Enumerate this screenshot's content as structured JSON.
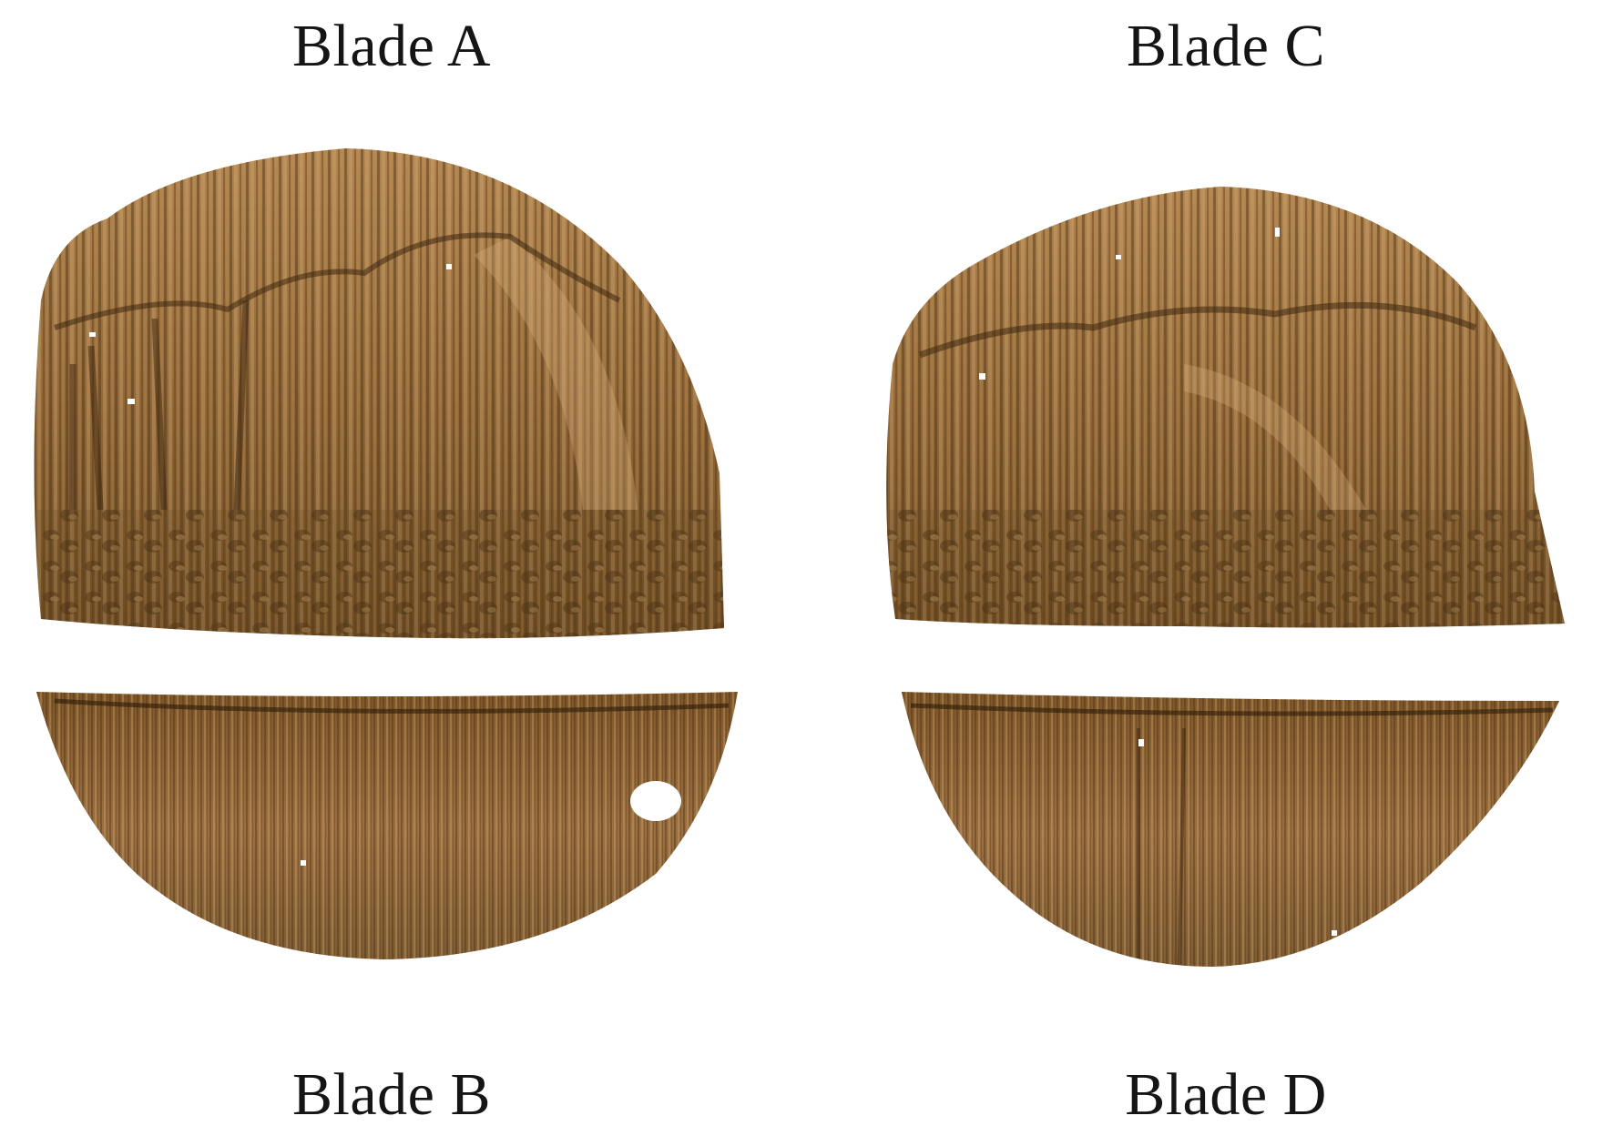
{
  "labels": {
    "blade_a": "Blade A",
    "blade_b": "Blade B",
    "blade_c": "Blade C",
    "blade_d": "Blade D"
  },
  "colors": {
    "surface_base": "#8a6236",
    "surface_light": "#c49a62",
    "surface_dark": "#4f3517",
    "background": "#ffffff"
  }
}
